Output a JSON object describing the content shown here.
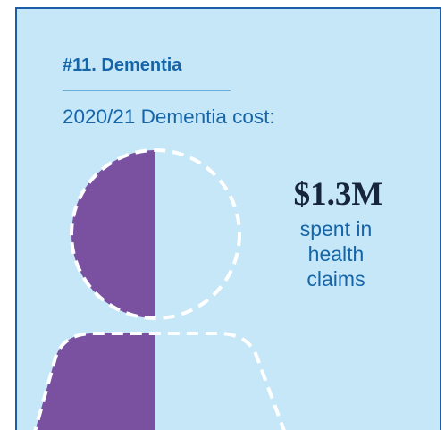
{
  "card": {
    "heading": "#11. Dementia",
    "subtitle": "2020/21 Dementia cost:",
    "amount": "$1.3M",
    "caption_lines": [
      "spent in",
      "health",
      "claims"
    ]
  },
  "figure": {
    "icon": "person-half-filled-icon",
    "filled_fraction": 0.5
  },
  "colors": {
    "background": "#c6e7f7",
    "border": "#1a5fa8",
    "accent_purple": "#7a50a0",
    "heading_blue": "#1565a8",
    "amount_dark": "#16243d",
    "dash_white": "#ffffff"
  }
}
